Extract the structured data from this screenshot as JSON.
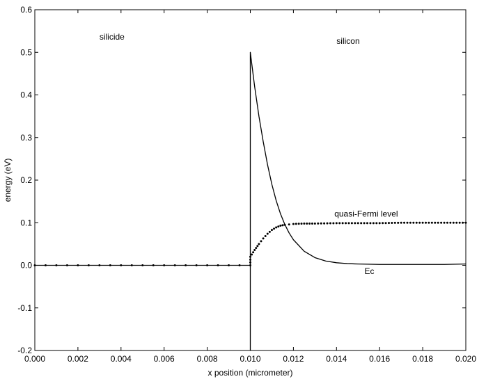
{
  "chart_data": {
    "type": "line",
    "title": "",
    "xlabel": "x position (micrometer)",
    "ylabel": "energy (eV)",
    "xlim": [
      0.0,
      0.02
    ],
    "ylim": [
      -0.2,
      0.6
    ],
    "x_ticks": [
      "0.000",
      "0.002",
      "0.004",
      "0.006",
      "0.008",
      "0.010",
      "0.012",
      "0.014",
      "0.016",
      "0.018",
      "0.020"
    ],
    "y_ticks": [
      "-0.2",
      "-0.1",
      "0.0",
      "0.1",
      "0.2",
      "0.3",
      "0.4",
      "0.5",
      "0.6"
    ],
    "grid": false,
    "annotations": [
      {
        "text": "silicide",
        "x": 0.003,
        "y": 0.53
      },
      {
        "text": "silicon",
        "x": 0.014,
        "y": 0.52
      },
      {
        "text": "quasi-Fermi level",
        "x": 0.0139,
        "y": 0.114
      },
      {
        "text": "Ec",
        "x": 0.0153,
        "y": -0.02
      }
    ],
    "series": [
      {
        "name": "Ec",
        "style": "solid",
        "x": [
          0.0,
          0.01,
          0.01,
          0.01,
          0.0102,
          0.0104,
          0.0106,
          0.0108,
          0.011,
          0.0112,
          0.0114,
          0.0116,
          0.0118,
          0.012,
          0.0125,
          0.013,
          0.0135,
          0.014,
          0.0145,
          0.015,
          0.016,
          0.017,
          0.018,
          0.019,
          0.02
        ],
        "y": [
          0.0,
          0.0,
          -0.2,
          0.5,
          0.42,
          0.35,
          0.29,
          0.236,
          0.19,
          0.152,
          0.121,
          0.096,
          0.076,
          0.06,
          0.033,
          0.018,
          0.01,
          0.006,
          0.004,
          0.003,
          0.002,
          0.002,
          0.002,
          0.002,
          0.003
        ]
      },
      {
        "name": "quasi-Fermi level",
        "style": "dotted",
        "x": [
          0.0,
          0.01,
          0.01,
          0.0102,
          0.0104,
          0.0106,
          0.0108,
          0.011,
          0.0112,
          0.0114,
          0.0116,
          0.0118,
          0.012,
          0.0125,
          0.013,
          0.014,
          0.015,
          0.016,
          0.017,
          0.018,
          0.019,
          0.02
        ],
        "y": [
          0.0,
          0.0,
          0.02,
          0.036,
          0.05,
          0.063,
          0.074,
          0.083,
          0.089,
          0.093,
          0.095,
          0.096,
          0.097,
          0.098,
          0.098,
          0.099,
          0.099,
          0.099,
          0.1,
          0.1,
          0.1,
          0.1
        ]
      }
    ]
  }
}
